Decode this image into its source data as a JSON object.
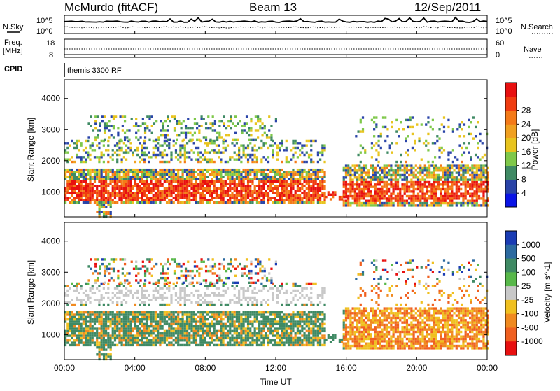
{
  "header": {
    "title": "McMurdo (fitACF)",
    "beam": "Beam 13",
    "date": "12/Sep/2011"
  },
  "noise_panel": {
    "left_label": "N.Sky",
    "left_tick_top": "10^5",
    "left_tick_bottom": "10^0",
    "right_label": "N.Search",
    "right_tick_top": "10^5",
    "right_tick_bottom": "10^0"
  },
  "freq_panel": {
    "left_label_1": "Freq.",
    "left_label_2": "[MHz]",
    "left_tick_top": "18",
    "left_tick_bottom": "8",
    "right_label": "Nave",
    "right_tick_top": "60",
    "right_tick_bottom": "0",
    "cpid_label": "CPID",
    "cpid_value": "themis 3300 RF"
  },
  "chart_data": [
    {
      "type": "heatmap",
      "parameter": "Power",
      "ylabel": "Slant Range [km]",
      "xlabel": "",
      "yticks": [
        "1000",
        "2000",
        "3000",
        "4000"
      ],
      "ylim": [
        200,
        4600
      ],
      "xlim_hours": [
        0,
        24
      ],
      "colorbar_label": "Power [dB]",
      "colorbar_ticks": [
        "4",
        "8",
        "12",
        "16",
        "20",
        "24",
        "28"
      ],
      "colors": [
        "#0a14e6",
        "#2a44a8",
        "#3f8a64",
        "#7fc84a",
        "#e8c41e",
        "#f0a020",
        "#f47a18",
        "#f03c10",
        "#e81010"
      ]
    },
    {
      "type": "heatmap",
      "parameter": "Velocity",
      "ylabel": "Slant Range [km]",
      "xlabel": "Time UT",
      "yticks": [
        "1000",
        "2000",
        "3000",
        "4000"
      ],
      "ylim": [
        200,
        4600
      ],
      "xticks": [
        "00:00",
        "04:00",
        "08:00",
        "12:00",
        "16:00",
        "20:00",
        "00:00"
      ],
      "xlim_hours": [
        0,
        24
      ],
      "colorbar_label": "Velocity [m s^-1]",
      "colorbar_ticks": [
        "1000",
        "500",
        "100",
        "25",
        "-25",
        "-100",
        "-500",
        "-1000"
      ],
      "colors": [
        "#1a3cb4",
        "#2c6aa0",
        "#3f8a64",
        "#58b84a",
        "#c8c8c8",
        "#f0c020",
        "#f08a20",
        "#f06020",
        "#e81010"
      ]
    }
  ]
}
